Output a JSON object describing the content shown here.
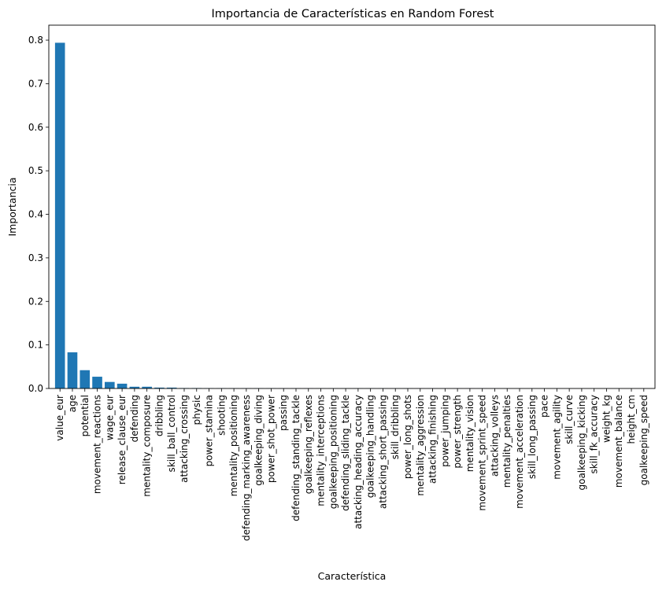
{
  "chart_data": {
    "type": "bar",
    "title": "Importancia de Características en Random Forest",
    "xlabel": "Característica",
    "ylabel": "Importancia",
    "ylim": [
      0,
      0.8344
    ],
    "yticks": [
      0.0,
      0.1,
      0.2,
      0.3,
      0.4,
      0.5,
      0.6,
      0.7,
      0.8
    ],
    "ytick_labels": [
      "0.0",
      "0.1",
      "0.2",
      "0.3",
      "0.4",
      "0.5",
      "0.6",
      "0.7",
      "0.8"
    ],
    "grid": false,
    "bar_color": "#1f77b4",
    "categories": [
      "value_eur",
      "age",
      "potential",
      "movement_reactions",
      "wage_eur",
      "release_clause_eur",
      "defending",
      "mentality_composure",
      "dribbling",
      "skill_ball_control",
      "attacking_crossing",
      "physic",
      "power_stamina",
      "shooting",
      "mentality_positioning",
      "defending_marking_awareness",
      "goalkeeping_diving",
      "power_shot_power",
      "passing",
      "defending_standing_tackle",
      "goalkeeping_reflexes",
      "mentality_interceptions",
      "goalkeeping_positioning",
      "defending_sliding_tackle",
      "attacking_heading_accuracy",
      "goalkeeping_handling",
      "attacking_short_passing",
      "skill_dribbling",
      "power_long_shots",
      "mentality_aggression",
      "attacking_finishing",
      "power_jumping",
      "power_strength",
      "mentality_vision",
      "movement_sprint_speed",
      "attacking_volleys",
      "mentality_penalties",
      "movement_acceleration",
      "skill_long_passing",
      "pace",
      "movement_agility",
      "skill_curve",
      "goalkeeping_kicking",
      "skill_fk_accuracy",
      "weight_kg",
      "movement_balance",
      "height_cm",
      "goalkeeping_speed"
    ],
    "values": [
      0.794,
      0.083,
      0.042,
      0.027,
      0.015,
      0.011,
      0.004,
      0.004,
      0.002,
      0.002,
      0.001,
      0.001,
      0.0008,
      0.0008,
      0.0007,
      0.0007,
      0.0006,
      0.0006,
      0.0005,
      0.0005,
      0.0005,
      0.0004,
      0.0004,
      0.0004,
      0.0003,
      0.0003,
      0.0003,
      0.0003,
      0.0003,
      0.0002,
      0.0002,
      0.0002,
      0.0002,
      0.0002,
      0.0002,
      0.0002,
      0.0001,
      0.0001,
      0.0001,
      0.0001,
      0.0001,
      0.0001,
      0.0001,
      0.0001,
      0.0001,
      0.0001,
      0.0001,
      0.0001
    ]
  }
}
